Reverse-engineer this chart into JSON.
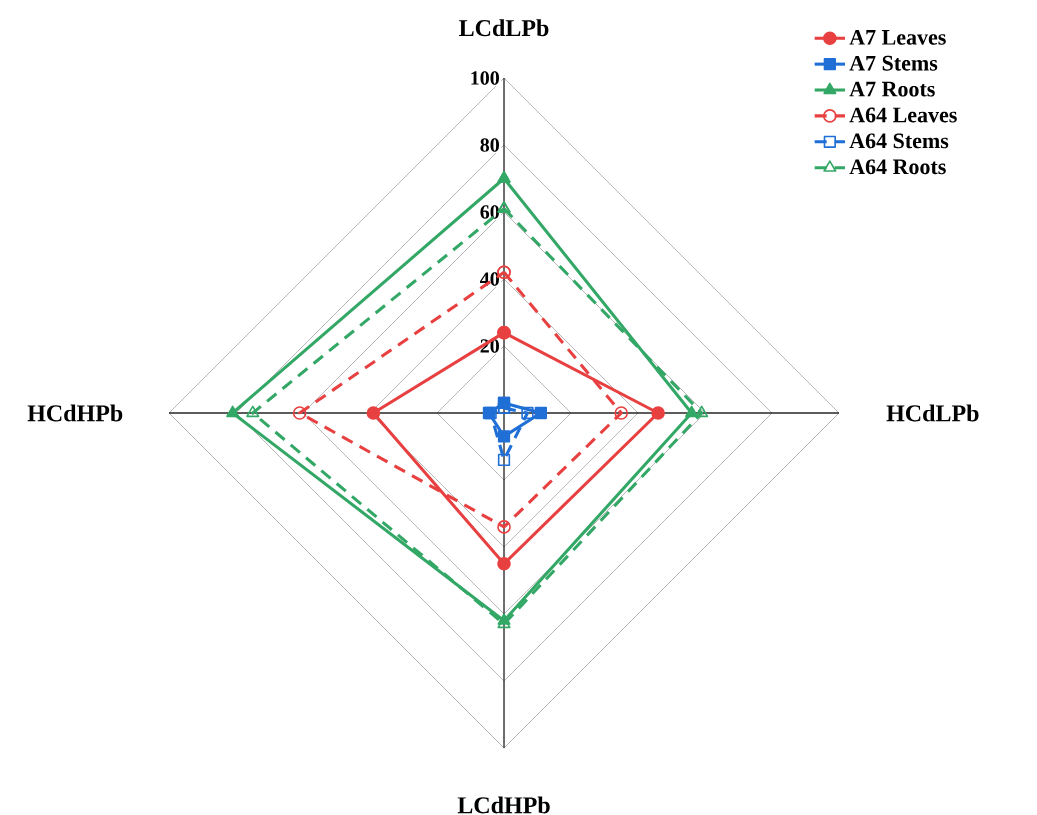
{
  "chart_data": {
    "type": "radar",
    "categories": [
      "LCdLPb",
      "HCdLPb",
      "LCdHPb",
      "HCdHPb"
    ],
    "ylim": [
      0,
      100
    ],
    "yticks": [
      20,
      40,
      60,
      80,
      100
    ],
    "grid": true,
    "legend": "top right",
    "series": [
      {
        "name": "A7 Leaves",
        "color": "#e84040",
        "values": [
          24,
          46,
          45,
          39
        ],
        "marker": "circle",
        "line_style": "solid"
      },
      {
        "name": "A7 Stems",
        "color": "#1f6fd6",
        "values": [
          3,
          11,
          7,
          4.5
        ],
        "marker": "square",
        "line_style": "solid"
      },
      {
        "name": "A7 Roots",
        "color": "#33a866",
        "values": [
          70,
          56,
          62,
          81
        ],
        "marker": "triangle",
        "line_style": "solid"
      },
      {
        "name": "A64 Leaves",
        "color": "#e84040",
        "values": [
          42,
          35,
          34,
          61
        ],
        "marker": "circle",
        "line_style": "dashed"
      },
      {
        "name": "A64 Stems",
        "color": "#1f6fd6",
        "values": [
          1.5,
          7,
          14,
          4
        ],
        "marker": "square",
        "line_style": "dashed"
      },
      {
        "name": "A64 Roots",
        "color": "#33a866",
        "values": [
          61,
          59,
          63,
          75
        ],
        "marker": "triangle",
        "line_style": "dashed"
      }
    ]
  }
}
